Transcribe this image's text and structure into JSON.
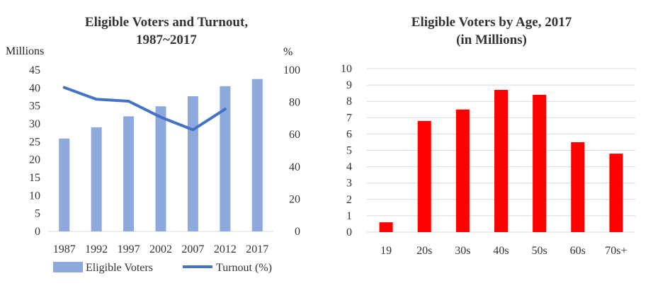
{
  "chart_data": [
    {
      "type": "bar",
      "title_line1": "Eligible Voters and Turnout,",
      "title_line2": "1987~2017",
      "ylabel": "Millions",
      "y2label": "%",
      "ylim": [
        0,
        45
      ],
      "y2lim": [
        0,
        100
      ],
      "yticks": [
        "0",
        "5",
        "10",
        "15",
        "20",
        "25",
        "30",
        "35",
        "40",
        "45"
      ],
      "y2ticks": [
        "0",
        "20",
        "40",
        "60",
        "80",
        "100"
      ],
      "categories": [
        "1987",
        "1992",
        "1997",
        "2002",
        "2007",
        "2012",
        "2017"
      ],
      "series": [
        {
          "name": "Eligible Voters",
          "kind": "bar",
          "axis": "left",
          "color": "#8EA9DB",
          "values": [
            25.9,
            29.0,
            32.1,
            34.9,
            37.7,
            40.5,
            42.5
          ]
        },
        {
          "name": "Turnout (%)",
          "kind": "line",
          "axis": "right",
          "color": "#4472C4",
          "values": [
            89.2,
            81.9,
            80.7,
            70.8,
            63.0,
            75.8,
            null
          ]
        }
      ],
      "legend_position": "bottom"
    },
    {
      "type": "bar",
      "title_line1": "Eligible Voters by Age, 2017",
      "title_line2": "(in Millions)",
      "ylim": [
        0,
        10
      ],
      "yticks": [
        "0",
        "1",
        "2",
        "3",
        "4",
        "5",
        "6",
        "7",
        "8",
        "9",
        "10"
      ],
      "categories": [
        "19",
        "20s",
        "30s",
        "40s",
        "50s",
        "60s",
        "70s+"
      ],
      "series": [
        {
          "kind": "bar",
          "color": "#FF0000",
          "values": [
            0.6,
            6.8,
            7.5,
            8.7,
            8.4,
            5.5,
            4.8
          ]
        }
      ]
    }
  ]
}
